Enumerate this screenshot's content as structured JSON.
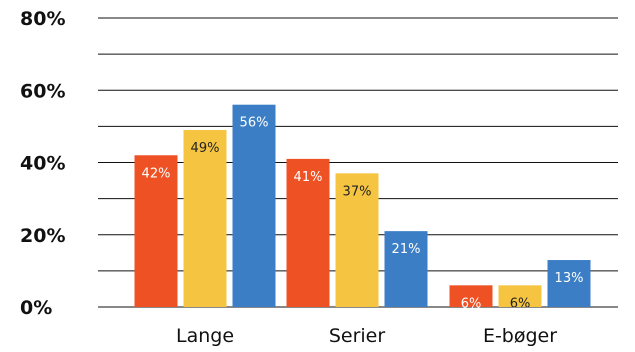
{
  "chart_data": {
    "type": "bar",
    "categories": [
      "Lange",
      "Serier",
      "E-bøger"
    ],
    "series": [
      {
        "color": "#ee5124",
        "values": [
          42,
          41,
          6
        ],
        "labels": [
          "42%",
          "41%",
          "6%"
        ],
        "label_color": "#ffffff"
      },
      {
        "color": "#f5c542",
        "values": [
          49,
          37,
          6
        ],
        "labels": [
          "49%",
          "37%",
          "6%"
        ],
        "label_color": "#222222"
      },
      {
        "color": "#3b7ec5",
        "values": [
          56,
          21,
          13
        ],
        "labels": [
          "56%",
          "21%",
          "13%"
        ],
        "label_color": "#ffffff"
      }
    ],
    "ylim": [
      0,
      80
    ],
    "yticks": [
      0,
      20,
      40,
      60,
      80
    ],
    "ytick_labels": [
      "0%",
      "20%",
      "40%",
      "60%",
      "80%"
    ],
    "grid": true,
    "grid_color": "#111111",
    "title": "",
    "xlabel": "",
    "ylabel": ""
  }
}
